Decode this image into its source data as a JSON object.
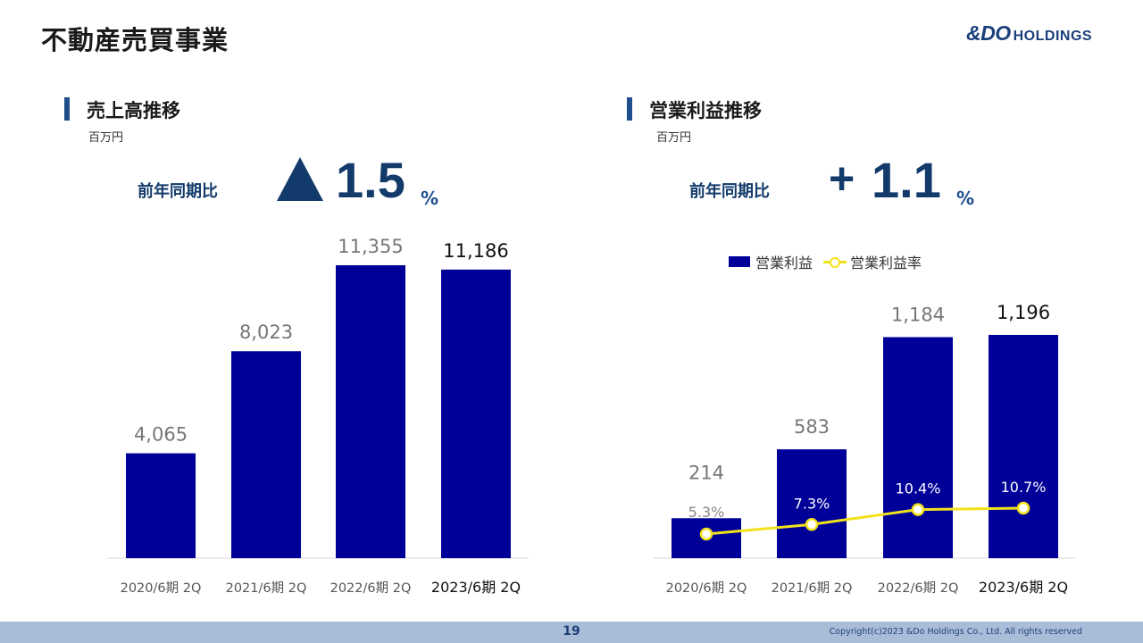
{
  "header": {
    "title": "不動産売買事業",
    "logo_mark": "&DO",
    "logo_word": "HOLDINGS"
  },
  "left_panel": {
    "title": "売上高推移",
    "unit": "百万円",
    "yoy_label": "前年同期比",
    "yoy_value": "1.5",
    "yoy_unit": "%"
  },
  "right_panel": {
    "title": "営業利益推移",
    "unit": "百万円",
    "yoy_label": "前年同期比",
    "yoy_sign": "+",
    "yoy_value": "1.1",
    "yoy_unit": "%"
  },
  "chart_data": [
    {
      "type": "bar",
      "categories": [
        "2020/6期 2Q",
        "2021/6期 2Q",
        "2022/6期 2Q",
        "2023/6期 2Q"
      ],
      "values": [
        4065,
        8023,
        11355,
        11186
      ],
      "value_labels": [
        "4,065",
        "8,023",
        "11,355",
        "11,186"
      ],
      "ylim": [
        0,
        11355
      ],
      "bar_color": "#000099",
      "highlight_last": true
    },
    {
      "type": "bar",
      "categories": [
        "2020/6期 2Q",
        "2021/6期 2Q",
        "2022/6期 2Q",
        "2023/6期 2Q"
      ],
      "series": [
        {
          "name": "営業利益",
          "values": [
            214,
            583,
            1184,
            1196
          ],
          "labels": [
            "214",
            "583",
            "1,184",
            "1,196"
          ],
          "color": "#000099"
        },
        {
          "name": "営業利益率",
          "type": "line",
          "values": [
            5.3,
            7.3,
            10.4,
            10.7
          ],
          "labels": [
            "5.3%",
            "7.3%",
            "10.4%",
            "10.7%"
          ],
          "color": "#f2e21c"
        }
      ],
      "ylim": [
        0,
        1196
      ],
      "legend_position": "top",
      "highlight_last": true
    }
  ],
  "footer": {
    "page_number": "19",
    "copyright": "Copyright(c)2023 &Do Holdings Co., Ltd. All rights reserved"
  }
}
